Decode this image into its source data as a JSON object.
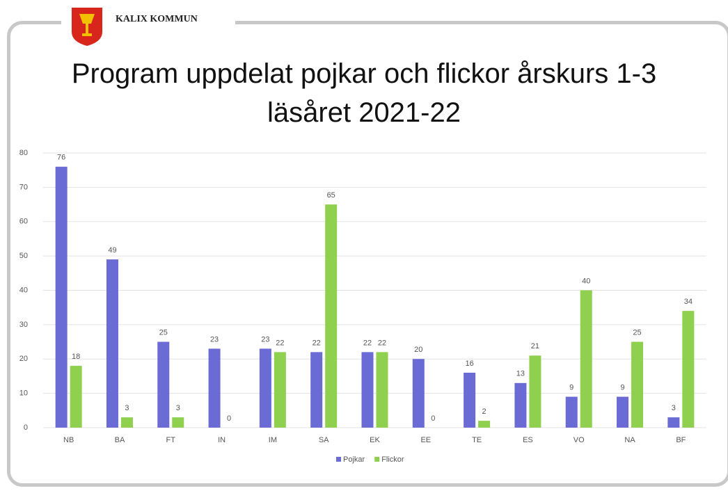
{
  "header": {
    "logo_text": "KALIX KOMMUN"
  },
  "chart_data": {
    "type": "bar",
    "title": "Program uppdelat pojkar och flickor årskurs 1-3 läsåret 2021-22",
    "categories": [
      "NB",
      "BA",
      "FT",
      "IN",
      "IM",
      "SA",
      "EK",
      "EE",
      "TE",
      "ES",
      "VO",
      "NA",
      "BF"
    ],
    "series": [
      {
        "name": "Pojkar",
        "color": "#6b6bd6",
        "values": [
          76,
          49,
          25,
          23,
          23,
          22,
          22,
          20,
          16,
          13,
          9,
          9,
          3
        ]
      },
      {
        "name": "Flickor",
        "color": "#8fd14f",
        "values": [
          18,
          3,
          3,
          0,
          22,
          65,
          22,
          0,
          2,
          21,
          40,
          25,
          34
        ]
      }
    ],
    "ylim": [
      0,
      80
    ],
    "yticks": [
      0,
      10,
      20,
      30,
      40,
      50,
      60,
      70,
      80
    ],
    "grid": true,
    "legend": "bottom",
    "data_labels": true
  }
}
